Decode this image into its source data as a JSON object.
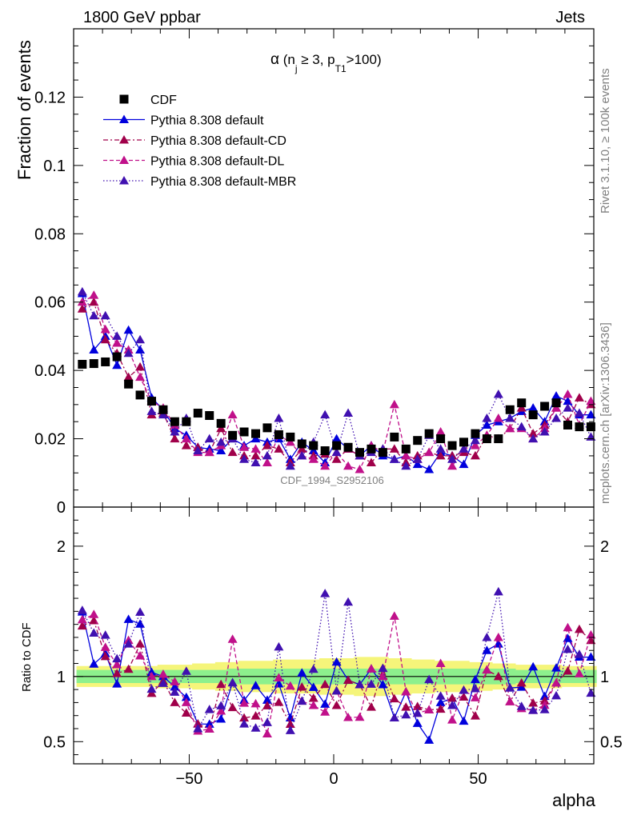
{
  "header": {
    "left": "1800 GeV ppbar",
    "right": "Jets"
  },
  "side_labels": {
    "rivet": "Rivet 3.1.10, ≥ 100k events",
    "mcplots": "mcplots.cern.ch [arXiv:1306.3436]"
  },
  "watermark": "CDF_1994_S2952106",
  "colors": {
    "cdf": "#000000",
    "default": "#0000dd",
    "default_cd": "#a0004a",
    "default_dl": "#c0108a",
    "default_mbr": "#4010b0",
    "band_inner": "#8df08d",
    "band_outer": "#f5f57a"
  },
  "chart_data": [
    {
      "type": "scatter",
      "title": "α (n_j ≥ 3, p_T1 > 100)",
      "title_parts": {
        "alpha": "α",
        "open": " (n",
        "j": "j",
        "geq": " ≥ 3, p",
        "T1": "T1",
        "close": ">100)"
      },
      "ylabel": "Fraction of events",
      "xlim": [
        -90,
        90
      ],
      "ylim": [
        0,
        0.14
      ],
      "yticks": [
        0,
        0.02,
        0.04,
        0.06,
        0.08,
        0.1,
        0.12
      ],
      "ytick_labels": [
        "0",
        "0.02",
        "0.04",
        "0.06",
        "0.08",
        "0.1",
        "0.12"
      ],
      "legend_position": "top-left",
      "x": [
        -87,
        -83,
        -79,
        -75,
        -71,
        -67,
        -63,
        -59,
        -55,
        -51,
        -47,
        -43,
        -39,
        -35,
        -31,
        -27,
        -23,
        -19,
        -15,
        -11,
        -7,
        -3,
        1,
        5,
        9,
        13,
        17,
        21,
        25,
        29,
        33,
        37,
        41,
        45,
        49,
        53,
        57,
        61,
        65,
        69,
        73,
        77,
        81,
        85,
        89
      ],
      "series": [
        {
          "name": "CDF",
          "style": "data",
          "values": [
            0.0418,
            0.042,
            0.0425,
            0.044,
            0.036,
            0.0328,
            0.031,
            0.0285,
            0.025,
            0.025,
            0.0275,
            0.0268,
            0.0245,
            0.021,
            0.022,
            0.0215,
            0.0232,
            0.0212,
            0.0205,
            0.0185,
            0.018,
            0.0165,
            0.018,
            0.0175,
            0.016,
            0.017,
            0.016,
            0.0205,
            0.017,
            0.0195,
            0.0215,
            0.02,
            0.018,
            0.019,
            0.0215,
            0.02,
            0.02,
            0.0285,
            0.0305,
            0.027,
            0.0295,
            0.0305,
            0.024,
            0.0235,
            0.0235
          ]
        },
        {
          "name": "Pythia 8.308 default",
          "style": "solid",
          "values": [
            0.0625,
            0.046,
            0.05,
            0.0415,
            0.0518,
            0.046,
            0.032,
            0.0285,
            0.023,
            0.021,
            0.0175,
            0.017,
            0.0165,
            0.02,
            0.018,
            0.02,
            0.019,
            0.02,
            0.014,
            0.019,
            0.0165,
            0.013,
            0.02,
            0.017,
            0.015,
            0.018,
            0.015,
            0.014,
            0.015,
            0.0125,
            0.011,
            0.016,
            0.015,
            0.0125,
            0.021,
            0.024,
            0.025,
            0.026,
            0.028,
            0.029,
            0.025,
            0.0325,
            0.031,
            0.027,
            0.027
          ]
        },
        {
          "name": "Pythia 8.308 default-CD",
          "style": "dashdot",
          "values": [
            0.058,
            0.06,
            0.049,
            0.045,
            0.038,
            0.041,
            0.027,
            0.0275,
            0.02,
            0.018,
            0.0175,
            0.016,
            0.023,
            0.016,
            0.015,
            0.015,
            0.018,
            0.017,
            0.013,
            0.017,
            0.015,
            0.0155,
            0.014,
            0.017,
            0.015,
            0.013,
            0.017,
            0.017,
            0.013,
            0.015,
            0.016,
            0.015,
            0.015,
            0.016,
            0.015,
            0.021,
            0.02,
            0.023,
            0.029,
            0.0215,
            0.024,
            0.029,
            0.025,
            0.032,
            0.03
          ]
        },
        {
          "name": "Pythia 8.308 default-DL",
          "style": "dashed",
          "values": [
            0.06,
            0.062,
            0.052,
            0.048,
            0.046,
            0.038,
            0.031,
            0.029,
            0.024,
            0.02,
            0.016,
            0.016,
            0.018,
            0.027,
            0.0175,
            0.017,
            0.013,
            0.021,
            0.019,
            0.015,
            0.014,
            0.012,
            0.016,
            0.012,
            0.011,
            0.018,
            0.016,
            0.03,
            0.015,
            0.014,
            0.016,
            0.022,
            0.012,
            0.017,
            0.018,
            0.021,
            0.026,
            0.023,
            0.023,
            0.02,
            0.023,
            0.029,
            0.033,
            0.024,
            0.031
          ]
        },
        {
          "name": "Pythia 8.308 default-MBR",
          "style": "dotted",
          "values": [
            0.063,
            0.056,
            0.056,
            0.05,
            0.045,
            0.049,
            0.028,
            0.027,
            0.022,
            0.026,
            0.0165,
            0.02,
            0.019,
            0.02,
            0.014,
            0.013,
            0.015,
            0.026,
            0.012,
            0.015,
            0.019,
            0.027,
            0.016,
            0.0275,
            0.015,
            0.016,
            0.017,
            0.014,
            0.012,
            0.014,
            0.021,
            0.017,
            0.014,
            0.017,
            0.0195,
            0.026,
            0.033,
            0.026,
            0.0235,
            0.02,
            0.022,
            0.026,
            0.029,
            0.0275,
            0.0205
          ]
        }
      ]
    },
    {
      "type": "line",
      "ylabel": "Ratio to CDF",
      "xlabel": "alpha",
      "xlim": [
        -90,
        90
      ],
      "ylim": [
        0.33,
        2.3
      ],
      "yticks": [
        0.5,
        1,
        2
      ],
      "ytick_labels": [
        "0.5",
        "1",
        "2"
      ],
      "xticks": [
        -50,
        0,
        50
      ],
      "xtick_labels": [
        "−50",
        "0",
        "50"
      ],
      "band_inner_halfwidth": [
        0.05,
        0.05,
        0.05,
        0.05,
        0.05,
        0.05,
        0.05,
        0.05,
        0.05,
        0.05,
        0.05,
        0.05,
        0.05,
        0.06,
        0.06,
        0.06,
        0.06,
        0.06,
        0.06,
        0.06,
        0.06,
        0.06,
        0.06,
        0.06,
        0.06,
        0.06,
        0.06,
        0.06,
        0.06,
        0.06,
        0.06,
        0.06,
        0.06,
        0.06,
        0.06,
        0.06,
        0.06,
        0.06,
        0.05,
        0.05,
        0.05,
        0.05,
        0.05,
        0.05,
        0.05
      ],
      "band_outer_halfwidth": [
        0.08,
        0.08,
        0.08,
        0.08,
        0.08,
        0.08,
        0.08,
        0.09,
        0.09,
        0.09,
        0.1,
        0.1,
        0.11,
        0.11,
        0.12,
        0.12,
        0.12,
        0.13,
        0.13,
        0.13,
        0.13,
        0.14,
        0.14,
        0.14,
        0.15,
        0.15,
        0.15,
        0.14,
        0.14,
        0.13,
        0.13,
        0.12,
        0.12,
        0.12,
        0.11,
        0.11,
        0.1,
        0.1,
        0.09,
        0.09,
        0.09,
        0.09,
        0.08,
        0.08,
        0.08
      ]
    }
  ]
}
